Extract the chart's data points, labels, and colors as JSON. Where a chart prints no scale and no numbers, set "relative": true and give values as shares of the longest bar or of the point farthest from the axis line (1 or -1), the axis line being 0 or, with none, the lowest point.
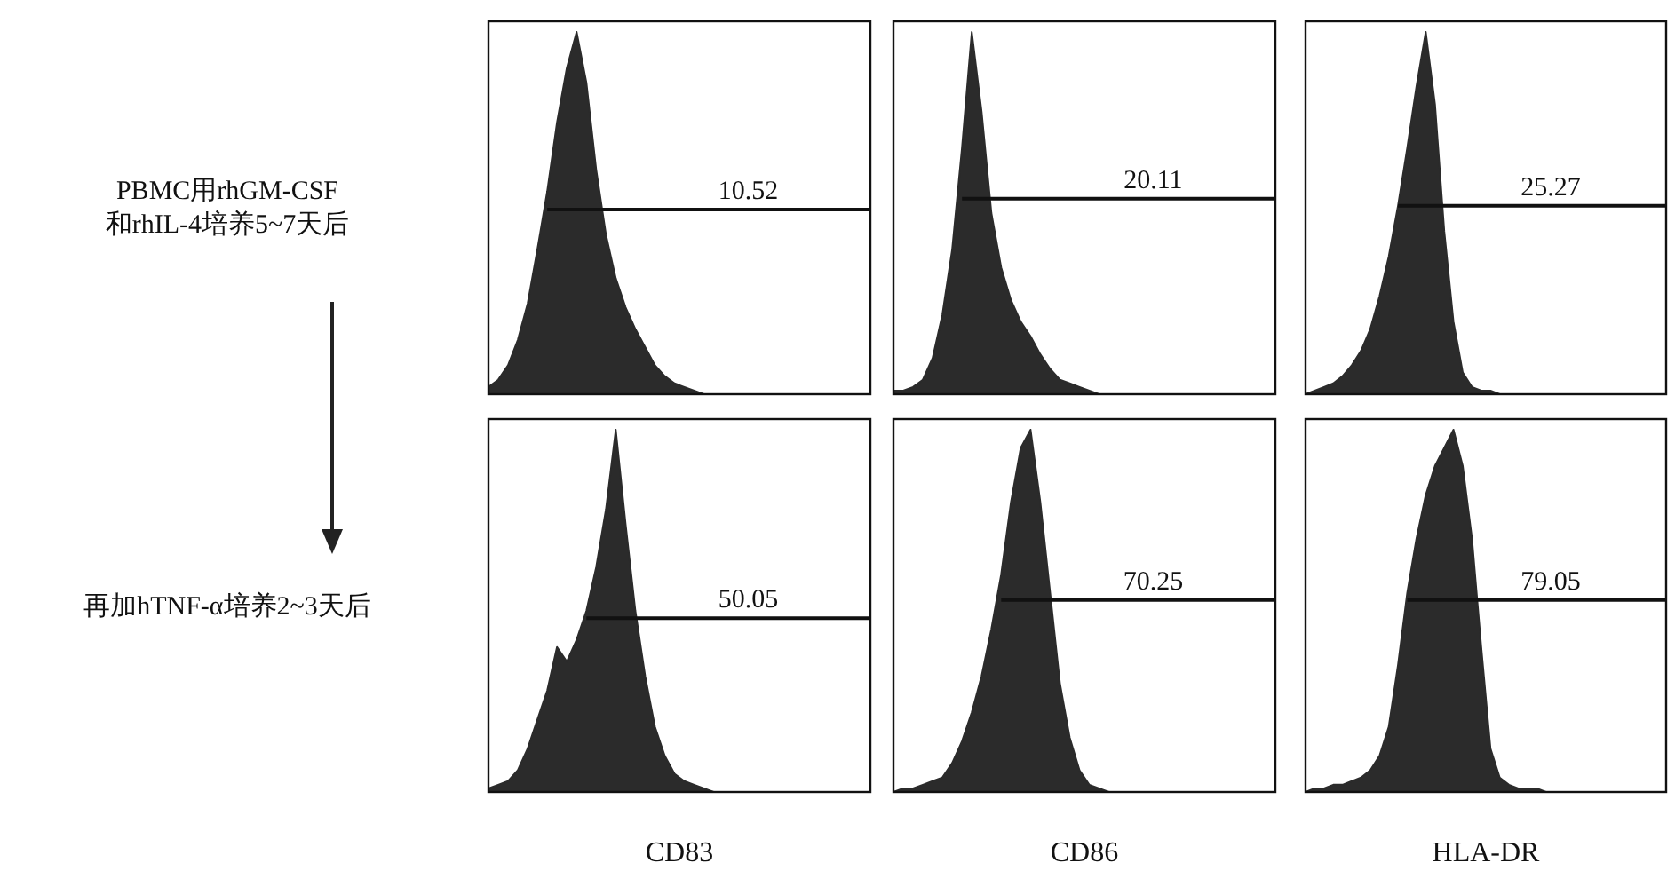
{
  "chart_data": [
    {
      "type": "area",
      "relative": true,
      "color": "#2b2b2b",
      "ylabel": "PBMC用rhGM-CSF\n和rhIL-4培养5~7天后",
      "ref_lines": [
        {
          "axis": "y",
          "value": 0.51
        }
      ],
      "annotations": [
        "10.52"
      ],
      "categories": [
        null,
        null,
        null,
        null,
        null,
        null,
        null,
        null,
        null,
        null,
        null,
        null,
        null,
        null,
        null,
        null,
        null,
        null,
        null,
        null,
        null,
        null,
        null,
        null,
        null,
        null,
        null,
        null,
        null,
        null,
        null,
        null,
        null,
        null,
        null,
        null,
        null,
        null,
        null,
        null
      ],
      "values": [
        0.02,
        0.04,
        0.08,
        0.15,
        0.25,
        0.4,
        0.56,
        0.75,
        0.9,
        1,
        0.86,
        0.62,
        0.44,
        0.32,
        0.24,
        0.18,
        0.13,
        0.08,
        0.05,
        0.03,
        0.02,
        0.01,
        0,
        0,
        0,
        0,
        0,
        0,
        0,
        0,
        0,
        0,
        0,
        0,
        0,
        0,
        0,
        0,
        0,
        0
      ]
    },
    {
      "type": "area",
      "relative": true,
      "color": "#2b2b2b",
      "ref_lines": [
        {
          "axis": "y",
          "value": 0.54
        }
      ],
      "annotations": [
        "20.11"
      ],
      "categories": [
        null,
        null,
        null,
        null,
        null,
        null,
        null,
        null,
        null,
        null,
        null,
        null,
        null,
        null,
        null,
        null,
        null,
        null,
        null,
        null,
        null,
        null,
        null,
        null,
        null,
        null,
        null,
        null,
        null,
        null,
        null,
        null,
        null,
        null,
        null,
        null,
        null,
        null,
        null,
        null
      ],
      "values": [
        0.01,
        0.01,
        0.02,
        0.04,
        0.1,
        0.22,
        0.4,
        0.68,
        1,
        0.78,
        0.5,
        0.35,
        0.26,
        0.2,
        0.16,
        0.11,
        0.07,
        0.04,
        0.03,
        0.02,
        0.01,
        0,
        0,
        0,
        0,
        0,
        0,
        0,
        0,
        0,
        0,
        0,
        0,
        0,
        0,
        0,
        0,
        0,
        0,
        0
      ]
    },
    {
      "type": "area",
      "relative": true,
      "color": "#2b2b2b",
      "ref_lines": [
        {
          "axis": "y",
          "value": 0.52
        }
      ],
      "annotations": [
        "25.27"
      ],
      "categories": [
        null,
        null,
        null,
        null,
        null,
        null,
        null,
        null,
        null,
        null,
        null,
        null,
        null,
        null,
        null,
        null,
        null,
        null,
        null,
        null,
        null,
        null,
        null,
        null,
        null,
        null,
        null,
        null,
        null,
        null,
        null,
        null,
        null,
        null,
        null,
        null,
        null,
        null,
        null,
        null
      ],
      "values": [
        0,
        0.01,
        0.02,
        0.03,
        0.05,
        0.08,
        0.12,
        0.18,
        0.27,
        0.38,
        0.52,
        0.68,
        0.85,
        1,
        0.8,
        0.45,
        0.2,
        0.06,
        0.02,
        0.01,
        0.01,
        0,
        0,
        0,
        0,
        0,
        0,
        0,
        0,
        0,
        0,
        0,
        0,
        0,
        0,
        0,
        0,
        0,
        0,
        0
      ]
    },
    {
      "type": "area",
      "relative": true,
      "color": "#2b2b2b",
      "ylabel": "再加hTNF-α培养2~3天后",
      "xlabel": "CD83",
      "ref_lines": [
        {
          "axis": "y",
          "value": 0.48
        }
      ],
      "annotations": [
        "50.05"
      ],
      "categories": [
        null,
        null,
        null,
        null,
        null,
        null,
        null,
        null,
        null,
        null,
        null,
        null,
        null,
        null,
        null,
        null,
        null,
        null,
        null,
        null,
        null,
        null,
        null,
        null,
        null,
        null,
        null,
        null,
        null,
        null,
        null,
        null,
        null,
        null,
        null,
        null,
        null,
        null,
        null,
        null
      ],
      "values": [
        0.01,
        0.02,
        0.03,
        0.06,
        0.12,
        0.2,
        0.28,
        0.4,
        0.36,
        0.42,
        0.5,
        0.62,
        0.78,
        1,
        0.74,
        0.5,
        0.32,
        0.18,
        0.1,
        0.05,
        0.03,
        0.02,
        0.01,
        0,
        0,
        0,
        0,
        0,
        0,
        0,
        0,
        0,
        0,
        0,
        0,
        0,
        0,
        0,
        0,
        0
      ]
    },
    {
      "type": "area",
      "relative": true,
      "color": "#2b2b2b",
      "xlabel": "CD86",
      "ref_lines": [
        {
          "axis": "y",
          "value": 0.53
        }
      ],
      "annotations": [
        "70.25"
      ],
      "categories": [
        null,
        null,
        null,
        null,
        null,
        null,
        null,
        null,
        null,
        null,
        null,
        null,
        null,
        null,
        null,
        null,
        null,
        null,
        null,
        null,
        null,
        null,
        null,
        null,
        null,
        null,
        null,
        null,
        null,
        null,
        null,
        null,
        null,
        null,
        null,
        null,
        null,
        null,
        null,
        null
      ],
      "values": [
        0,
        0.01,
        0.01,
        0.02,
        0.03,
        0.04,
        0.08,
        0.14,
        0.22,
        0.32,
        0.45,
        0.6,
        0.8,
        0.95,
        1,
        0.8,
        0.55,
        0.3,
        0.15,
        0.06,
        0.02,
        0.01,
        0,
        0,
        0,
        0,
        0,
        0,
        0,
        0,
        0,
        0,
        0,
        0,
        0,
        0,
        0,
        0,
        0,
        0
      ]
    },
    {
      "type": "area",
      "relative": true,
      "color": "#2b2b2b",
      "xlabel": "HLA-DR",
      "ref_lines": [
        {
          "axis": "y",
          "value": 0.53
        }
      ],
      "annotations": [
        "79.05"
      ],
      "categories": [
        null,
        null,
        null,
        null,
        null,
        null,
        null,
        null,
        null,
        null,
        null,
        null,
        null,
        null,
        null,
        null,
        null,
        null,
        null,
        null,
        null,
        null,
        null,
        null,
        null,
        null,
        null,
        null,
        null,
        null,
        null,
        null,
        null,
        null,
        null,
        null,
        null,
        null,
        null,
        null
      ],
      "values": [
        0,
        0.01,
        0.01,
        0.02,
        0.02,
        0.03,
        0.04,
        0.06,
        0.1,
        0.18,
        0.35,
        0.55,
        0.7,
        0.82,
        0.9,
        0.95,
        1,
        0.9,
        0.7,
        0.4,
        0.12,
        0.04,
        0.02,
        0.01,
        0.01,
        0.01,
        0,
        0,
        0,
        0,
        0,
        0,
        0,
        0,
        0,
        0,
        0,
        0,
        0,
        0
      ]
    }
  ]
}
